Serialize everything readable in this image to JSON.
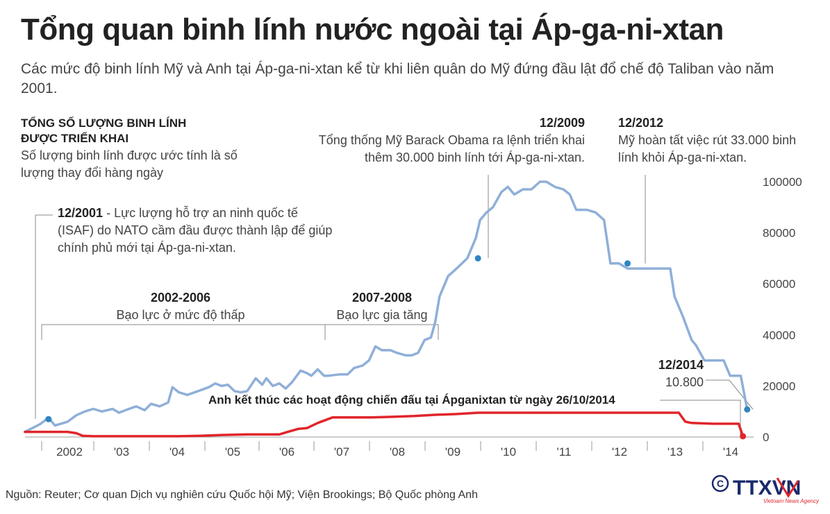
{
  "title": "Tổng quan binh lính nước ngoài tại Áp-ga-ni-xtan",
  "subtitle": "Các mức độ binh lính Mỹ và Anh tại Áp-ga-ni-xtan kể từ khi liên quân do Mỹ đứng đầu lật đổ chế độ Taliban vào năm 2001.",
  "left_note": {
    "heading_line1": "TỔNG SỐ LƯỢNG BINH LÍNH",
    "heading_line2": "ĐƯỢC TRIỂN KHAI",
    "text_line1": "Số lượng binh lính được ước tính là số",
    "text_line2": "lượng thay đổi hàng ngày"
  },
  "annotations": {
    "a2001_date": "12/2001",
    "a2001_line1": " - Lực lượng hỗ trợ an ninh quốc tế",
    "a2001_line2": "(ISAF) do NATO cầm đầu được thành lập để giúp",
    "a2001_line3": "chính phủ mới tại Áp-ga-ni-xtan.",
    "a2009_date": "12/2009",
    "a2009_line1": "Tổng thống Mỹ Barack Obama ra lệnh triển khai",
    "a2009_line2": "thêm 30.000 binh lính tới  Áp-ga-ni-xtan.",
    "a2012_date": "12/2012",
    "a2012_line1": "Mỹ hoàn tất việc rút 33.000 binh",
    "a2012_line2": "lính khỏi Áp-ga-ni-xtan.",
    "a2014_date": "12/2014",
    "a2014_value": "10.800",
    "period1_years": "2002-2006",
    "period1_text": "Bạo lực ở mức độ thấp",
    "period2_years": "2007-2008",
    "period2_text": "Bạo lực gia tăng",
    "uk_end": "Anh kết thúc các hoạt động chiến đấu tại Ápganixtan từ ngày 26/10/2014"
  },
  "source": "Nguồn: Reuter; Cơ quan Dịch vụ nghiên cứu Quốc hội Mỹ; Viện Brookings; Bộ Quốc phòng Anh",
  "logo_text": "TTXVN",
  "logo_sub": "Vietnam News Agency",
  "colors": {
    "us_line": "#8fafd8",
    "uk_line": "#e0252b",
    "us_dot": "#2e86c1",
    "grid": "#999999"
  },
  "chart_data": {
    "type": "line",
    "title": "",
    "xlabel": "",
    "ylabel": "",
    "ylim": [
      0,
      100000
    ],
    "yticks": [
      "100000",
      "80000",
      "60000",
      "40000",
      "20000",
      "0"
    ],
    "yticks_values": [
      100000,
      80000,
      60000,
      40000,
      20000,
      0
    ],
    "xticks": [
      "2002",
      "'03",
      "'04",
      "'05",
      "'06",
      "'07",
      "'08",
      "'09",
      "'10",
      "'11",
      "'12",
      "'13",
      "'14"
    ],
    "xticks_values": [
      2002,
      2003,
      2004,
      2005,
      2006,
      2007,
      2008,
      2009,
      2010,
      2011,
      2012,
      2013,
      2014
    ],
    "series": [
      {
        "name": "",
        "color": "#8fafd8",
        "points": [
          [
            2001.4,
            2000
          ],
          [
            2001.75,
            5000
          ],
          [
            2001.95,
            7500
          ],
          [
            2002.1,
            4500
          ],
          [
            2002.4,
            6000
          ],
          [
            2002.6,
            8500
          ],
          [
            2002.8,
            10000
          ],
          [
            2003.0,
            11000
          ],
          [
            2003.2,
            10000
          ],
          [
            2003.45,
            11000
          ],
          [
            2003.6,
            9500
          ],
          [
            2003.75,
            10500
          ],
          [
            2004.0,
            12000
          ],
          [
            2004.2,
            10500
          ],
          [
            2004.35,
            13000
          ],
          [
            2004.55,
            12000
          ],
          [
            2004.75,
            13500
          ],
          [
            2004.85,
            19500
          ],
          [
            2005.0,
            17500
          ],
          [
            2005.2,
            16500
          ],
          [
            2005.45,
            18000
          ],
          [
            2005.7,
            19500
          ],
          [
            2005.85,
            21000
          ],
          [
            2006.0,
            20000
          ],
          [
            2006.15,
            20500
          ],
          [
            2006.3,
            18000
          ],
          [
            2006.45,
            17500
          ],
          [
            2006.6,
            18000
          ],
          [
            2006.8,
            23000
          ],
          [
            2006.95,
            20500
          ],
          [
            2007.05,
            23000
          ],
          [
            2007.2,
            20000
          ],
          [
            2007.35,
            21000
          ],
          [
            2007.5,
            19000
          ],
          [
            2007.65,
            21500
          ],
          [
            2007.85,
            26000
          ],
          [
            2008.0,
            25000
          ],
          [
            2008.1,
            24000
          ],
          [
            2008.25,
            26500
          ],
          [
            2008.4,
            24000
          ],
          [
            2008.5,
            24000
          ],
          [
            2008.75,
            24500
          ],
          [
            2008.95,
            24500
          ],
          [
            2009.1,
            27000
          ],
          [
            2009.3,
            28000
          ],
          [
            2009.45,
            30000
          ],
          [
            2009.6,
            35500
          ],
          [
            2009.75,
            34000
          ],
          [
            2009.95,
            34000
          ],
          [
            2010.1,
            33000
          ],
          [
            2010.3,
            32000
          ],
          [
            2010.45,
            32000
          ],
          [
            2010.6,
            33000
          ],
          [
            2010.75,
            38000
          ],
          [
            2010.9,
            39000
          ],
          [
            2011.0,
            45000
          ],
          [
            2011.1,
            55000
          ],
          [
            2011.3,
            63000
          ],
          [
            2011.5,
            66000
          ],
          [
            2011.75,
            70000
          ],
          [
            2011.95,
            78000
          ],
          [
            2012.05,
            85000
          ],
          [
            2012.2,
            88000
          ],
          [
            2012.35,
            90000
          ],
          [
            2012.55,
            96000
          ],
          [
            2012.7,
            98000
          ],
          [
            2012.85,
            95000
          ],
          [
            2013.05,
            97000
          ],
          [
            2013.25,
            97000
          ],
          [
            2013.45,
            100000
          ],
          [
            2013.6,
            100000
          ],
          [
            2013.8,
            98000
          ],
          [
            2014.0,
            97000
          ],
          [
            2014.15,
            95000
          ],
          [
            2014.3,
            89000
          ],
          [
            2014.55,
            89000
          ],
          [
            2014.75,
            88000
          ],
          [
            2014.95,
            85000
          ],
          [
            2015.1,
            68000
          ],
          [
            2015.3,
            68000
          ],
          [
            2015.5,
            66000
          ],
          [
            2015.75,
            66000
          ],
          [
            2016.0,
            66000
          ],
          [
            2016.25,
            66000
          ],
          [
            2016.5,
            66000
          ],
          [
            2016.6,
            55000
          ],
          [
            2016.8,
            47000
          ],
          [
            2017.0,
            38000
          ],
          [
            2017.1,
            36000
          ],
          [
            2017.3,
            30000
          ],
          [
            2017.5,
            30000
          ],
          [
            2017.75,
            30000
          ],
          [
            2017.9,
            24000
          ],
          [
            2018.15,
            24000
          ],
          [
            2018.3,
            10800
          ]
        ]
      },
      {
        "name": "",
        "color": "#e0252b",
        "points": [
          [
            2001.4,
            2000
          ],
          [
            2002.0,
            2000
          ],
          [
            2002.4,
            2000
          ],
          [
            2002.6,
            1500
          ],
          [
            2002.75,
            500
          ],
          [
            2003.0,
            300
          ],
          [
            2004.0,
            300
          ],
          [
            2005.0,
            300
          ],
          [
            2005.5,
            500
          ],
          [
            2006.0,
            800
          ],
          [
            2006.6,
            1000
          ],
          [
            2007.0,
            1000
          ],
          [
            2007.35,
            1000
          ],
          [
            2007.55,
            2000
          ],
          [
            2007.8,
            3200
          ],
          [
            2008.0,
            3500
          ],
          [
            2008.25,
            5500
          ],
          [
            2008.6,
            7700
          ],
          [
            2009.0,
            7700
          ],
          [
            2009.5,
            7700
          ],
          [
            2010.0,
            7900
          ],
          [
            2010.5,
            8200
          ],
          [
            2011.0,
            8700
          ],
          [
            2011.5,
            9000
          ],
          [
            2012.0,
            9500
          ],
          [
            2012.5,
            9500
          ],
          [
            2013.0,
            9500
          ],
          [
            2014.0,
            9500
          ],
          [
            2015.0,
            9500
          ],
          [
            2016.0,
            9500
          ],
          [
            2016.7,
            9500
          ],
          [
            2016.85,
            6000
          ],
          [
            2017.0,
            5500
          ],
          [
            2017.5,
            5200
          ],
          [
            2018.0,
            5200
          ],
          [
            2018.1,
            5200
          ],
          [
            2018.2,
            300
          ]
        ]
      }
    ],
    "highlight_points": [
      {
        "x": 2001.95,
        "y": 7000
      },
      {
        "x": 2012.0,
        "y": 70000
      },
      {
        "x": 2015.5,
        "y": 68000
      },
      {
        "x": 2018.3,
        "y": 10800
      }
    ]
  }
}
